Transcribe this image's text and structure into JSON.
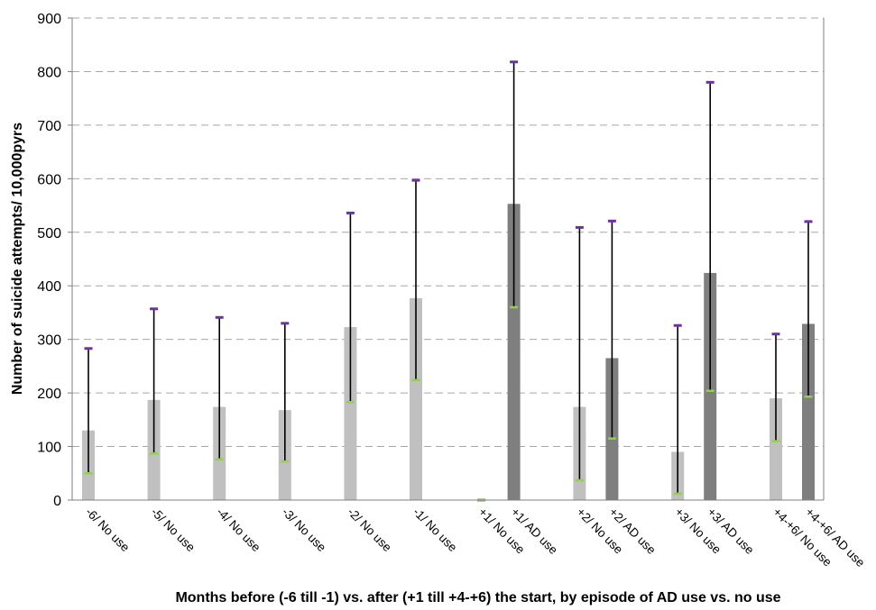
{
  "chart_data": {
    "type": "bar",
    "title": "",
    "xlabel": "Months before (-6 till -1) vs. after (+1 till +4-+6) the start, by episode of AD use vs. no use",
    "ylabel": "Number of suicide attempts/ 10,000pyrs",
    "ylim": [
      0,
      900
    ],
    "yticks": [
      0,
      100,
      200,
      300,
      400,
      500,
      600,
      700,
      800,
      900
    ],
    "grid": "horizontal-dashed",
    "legend": "none",
    "colors": {
      "no_use": "#c0c0c0",
      "ad_use": "#7f7f7f",
      "error_bar": "#000000",
      "upper_cap": "#7030a0",
      "lower_cap": "#92d050",
      "grid": "#a6a6a6"
    },
    "categories": [
      {
        "label": "-6/ No use",
        "group": "no_use",
        "value": 130,
        "lower": 50,
        "upper": 283
      },
      {
        "label": "-5/ No use",
        "group": "no_use",
        "value": 187,
        "lower": 87,
        "upper": 357
      },
      {
        "label": "-4/ No use",
        "group": "no_use",
        "value": 174,
        "lower": 76,
        "upper": 341
      },
      {
        "label": "-3/ No use",
        "group": "no_use",
        "value": 168,
        "lower": 72,
        "upper": 330
      },
      {
        "label": "-2/ No use",
        "group": "no_use",
        "value": 323,
        "lower": 183,
        "upper": 536
      },
      {
        "label": "-1/ No use",
        "group": "no_use",
        "value": 377,
        "lower": 224,
        "upper": 597
      },
      {
        "label": "+1/ No use",
        "group": "no_use",
        "value": 0,
        "lower": 0,
        "upper": 0
      },
      {
        "label": "+1/ AD use",
        "group": "ad_use",
        "value": 553,
        "lower": 360,
        "upper": 818
      },
      {
        "label": "+2/ No use",
        "group": "no_use",
        "value": 174,
        "lower": 37,
        "upper": 509
      },
      {
        "label": "+2/ AD use",
        "group": "ad_use",
        "value": 265,
        "lower": 115,
        "upper": 521
      },
      {
        "label": "+3/ No use",
        "group": "no_use",
        "value": 90,
        "lower": 12,
        "upper": 326
      },
      {
        "label": "+3/ AD use",
        "group": "ad_use",
        "value": 424,
        "lower": 204,
        "upper": 780
      },
      {
        "label": "+4-+6/ No use",
        "group": "no_use",
        "value": 190,
        "lower": 110,
        "upper": 310
      },
      {
        "label": "+4-+6/ AD use",
        "group": "ad_use",
        "value": 329,
        "lower": 193,
        "upper": 520
      }
    ]
  }
}
